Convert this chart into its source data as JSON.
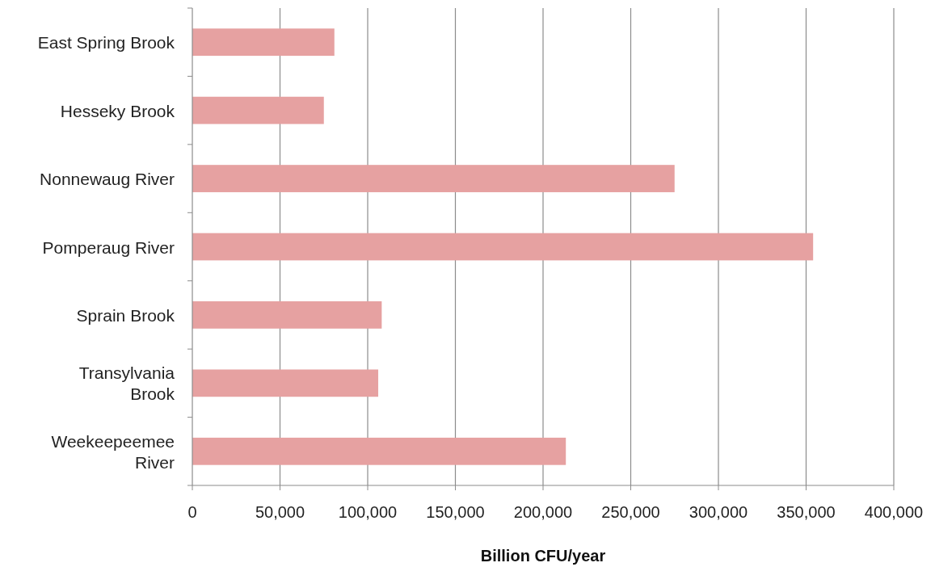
{
  "chart_data": {
    "type": "bar",
    "orientation": "horizontal",
    "xlabel": "Billion CFU/year",
    "categories": [
      "East Spring Brook",
      "Hesseky Brook",
      "Nonnewaug River",
      "Pomperaug River",
      "Sprain Brook",
      "Transylvania Brook",
      "Weekeepeemee River"
    ],
    "values": [
      81000,
      75000,
      275000,
      354000,
      108000,
      106000,
      213000
    ],
    "color": "#e6a1a1",
    "xlim": [
      0,
      400000
    ],
    "xticks": [
      {
        "value": 0,
        "label": "0"
      },
      {
        "value": 50000,
        "label": "50,000"
      },
      {
        "value": 100000,
        "label": "100,000"
      },
      {
        "value": 150000,
        "label": "150,000"
      },
      {
        "value": 200000,
        "label": "200,000"
      },
      {
        "value": 250000,
        "label": "250,000"
      },
      {
        "value": 300000,
        "label": "300,000"
      },
      {
        "value": 350000,
        "label": "350,000"
      },
      {
        "value": 400000,
        "label": "400,000"
      }
    ],
    "grid": "x"
  }
}
